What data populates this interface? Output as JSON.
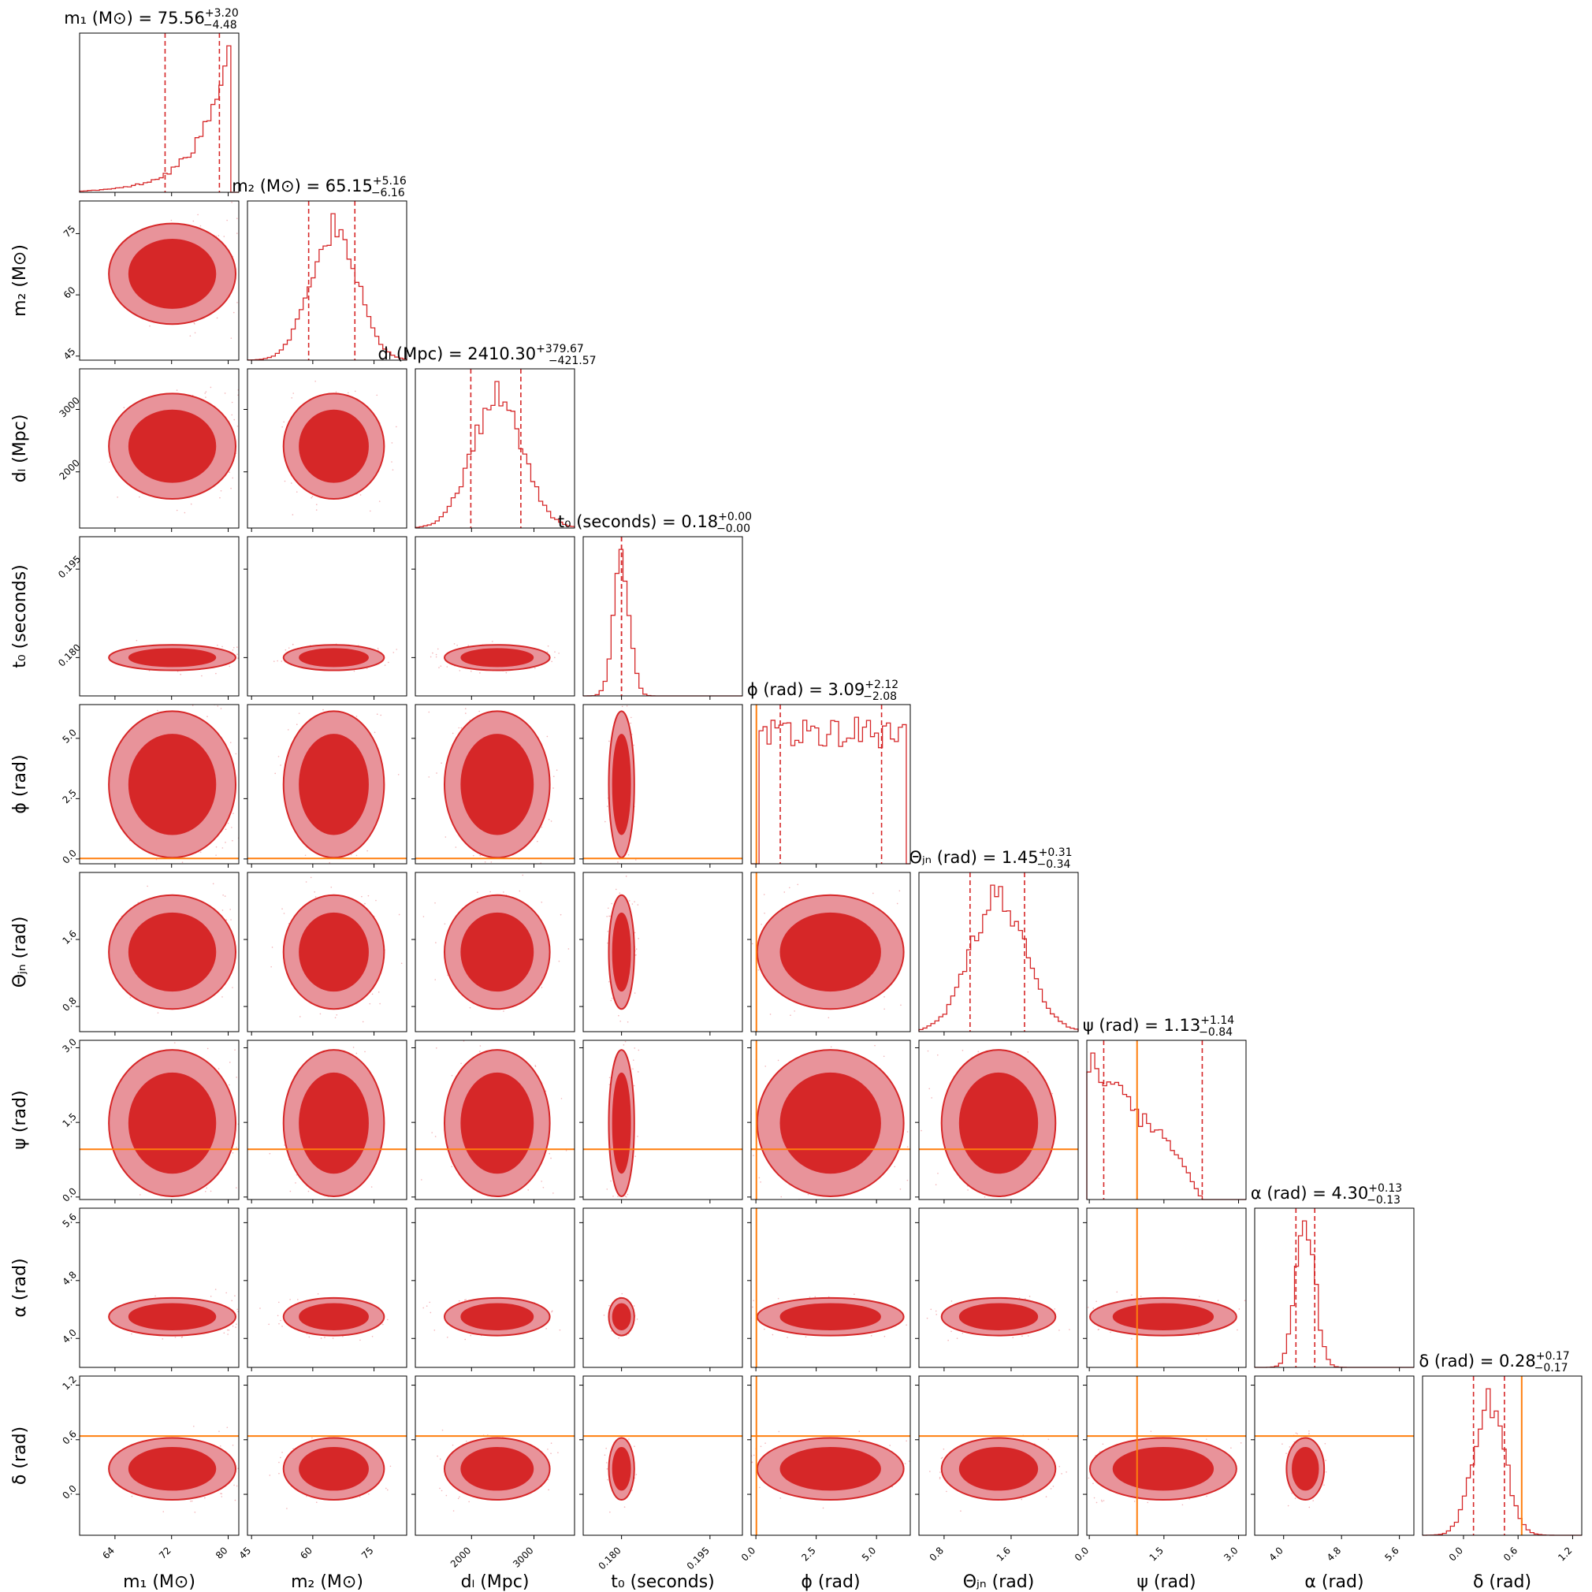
{
  "chart_data": {
    "type": "corner",
    "params": [
      {
        "key": "m1",
        "label": "m₁ (M⊙)",
        "ticks": [
          "64",
          "72",
          "80"
        ],
        "tick_values": [
          64,
          72,
          80
        ],
        "range": [
          59,
          81.5
        ],
        "title": "m₁ (M⊙) = 75.56",
        "title_sup": "+3.20",
        "title_sub": "−4.48",
        "median": 75.56,
        "err_plus": 3.2,
        "err_minus": 4.48,
        "truth": null
      },
      {
        "key": "m2",
        "label": "m₂ (M⊙)",
        "ticks": [
          "45",
          "60",
          "75"
        ],
        "tick_values": [
          45,
          60,
          75
        ],
        "range": [
          44,
          83
        ],
        "title": "m₂ (M⊙) = 65.15",
        "title_sup": "+5.16",
        "title_sub": "−6.16",
        "median": 65.15,
        "err_plus": 5.16,
        "err_minus": 6.16,
        "truth": null
      },
      {
        "key": "dL",
        "label": "dₗ (Mpc)",
        "ticks": [
          "2000",
          "3000"
        ],
        "tick_values": [
          2000,
          3000
        ],
        "range": [
          1100,
          3650
        ],
        "title": "dₗ (Mpc) = 2410.30",
        "title_sup": "+379.67",
        "title_sub": "−421.57",
        "median": 2410.3,
        "err_plus": 379.67,
        "err_minus": 421.57,
        "truth": null
      },
      {
        "key": "t0",
        "label": "t₀ (seconds)",
        "ticks": [
          "0.180",
          "0.195"
        ],
        "tick_values": [
          0.18,
          0.195
        ],
        "range": [
          0.1735,
          0.2005
        ],
        "title": "t₀ (seconds) = 0.18",
        "title_sup": "+0.00",
        "title_sub": "−0.00",
        "median": 0.18,
        "err_plus": 0.0,
        "err_minus": 0.0,
        "truth": null
      },
      {
        "key": "phi",
        "label": "ϕ (rad)",
        "ticks": [
          "0.0",
          "2.5",
          "5.0"
        ],
        "tick_values": [
          0,
          2.5,
          5.0
        ],
        "range": [
          -0.2,
          6.4
        ],
        "title": "ϕ (rad) = 3.09",
        "title_sup": "+2.12",
        "title_sub": "−2.08",
        "median": 3.09,
        "err_plus": 2.12,
        "err_minus": 2.08,
        "truth": 0.02
      },
      {
        "key": "theta",
        "label": "Θⱼₙ (rad)",
        "ticks": [
          "0.8",
          "1.6"
        ],
        "tick_values": [
          0.8,
          1.6
        ],
        "range": [
          0.5,
          2.4
        ],
        "title": "Θⱼₙ (rad) = 1.45",
        "title_sup": "+0.31",
        "title_sub": "−0.34",
        "median": 1.45,
        "err_plus": 0.31,
        "err_minus": 0.34,
        "truth": null
      },
      {
        "key": "psi",
        "label": "ψ (rad)",
        "ticks": [
          "0.0",
          "1.5",
          "3.0"
        ],
        "tick_values": [
          0,
          1.5,
          3.0
        ],
        "range": [
          -0.05,
          3.15
        ],
        "title": "ψ (rad) = 1.13",
        "title_sup": "+1.14",
        "title_sub": "−0.84",
        "median": 1.13,
        "err_plus": 1.14,
        "err_minus": 0.84,
        "truth": 0.96
      },
      {
        "key": "alpha",
        "label": "α (rad)",
        "ticks": [
          "4.0",
          "4.8",
          "5.6"
        ],
        "tick_values": [
          4.0,
          4.8,
          5.6
        ],
        "range": [
          3.6,
          5.8
        ],
        "title": "α (rad) = 4.30",
        "title_sup": "+0.13",
        "title_sub": "−0.13",
        "median": 4.3,
        "err_plus": 0.13,
        "err_minus": 0.13,
        "truth": null
      },
      {
        "key": "delta",
        "label": "δ (rad)",
        "ticks": [
          "0.0",
          "0.6",
          "1.2"
        ],
        "tick_values": [
          0,
          0.6,
          1.2
        ],
        "range": [
          -0.45,
          1.3
        ],
        "title": "δ (rad) = 0.28",
        "title_sup": "+0.17",
        "title_sub": "−0.17",
        "median": 0.28,
        "err_plus": 0.17,
        "err_minus": 0.17,
        "truth": 0.64
      }
    ],
    "colors": {
      "posterior": "#d62728",
      "posterior_light": "#e8939a",
      "truth": "#ff7f0e"
    }
  }
}
